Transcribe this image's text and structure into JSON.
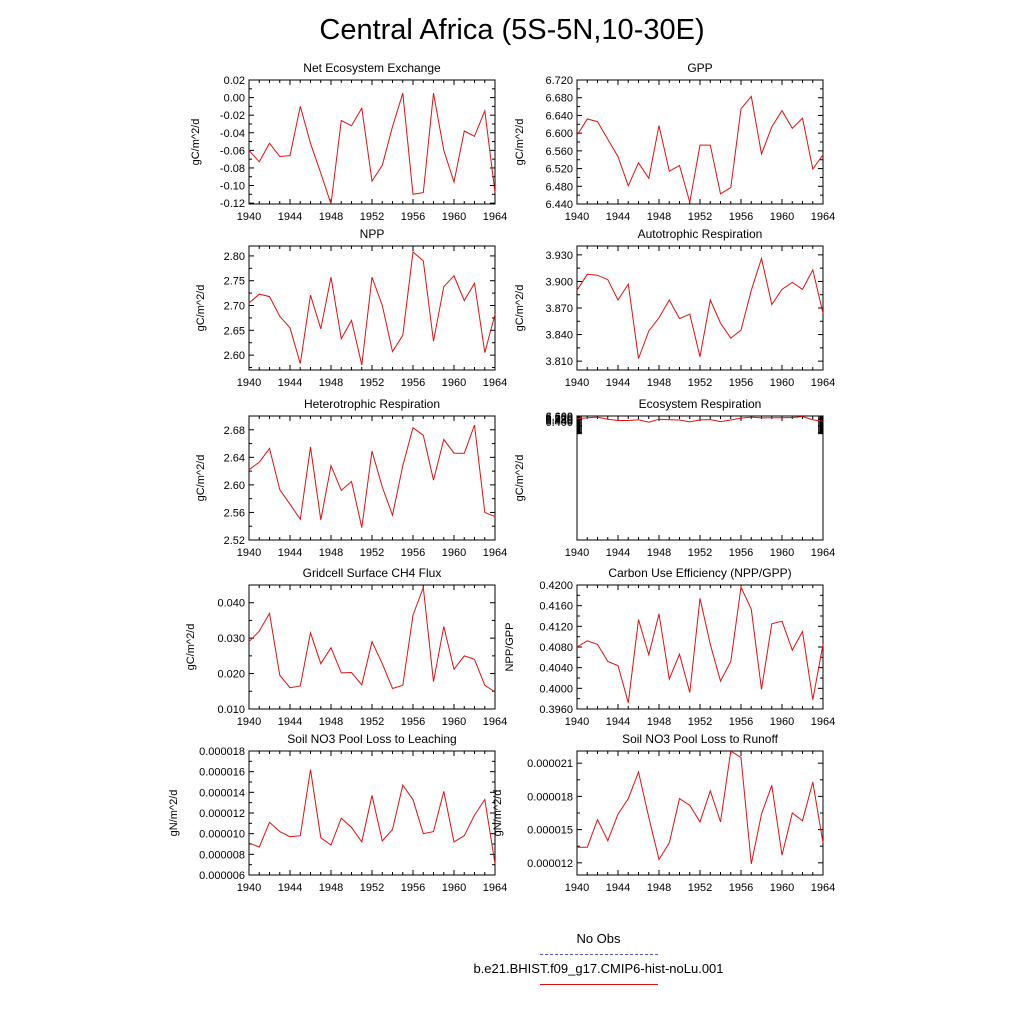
{
  "title": "Central Africa (5S-5N,10-30E)",
  "legend": [
    {
      "label": "No Obs",
      "color": "#5555cc",
      "dash": true
    },
    {
      "label": "b.e21.BHIST.f09_g17.CMIP6-hist-noLu.001",
      "color": "#e01010",
      "dash": false
    }
  ],
  "chart_data": [
    {
      "type": "line",
      "title": "Net Ecosystem Exchange",
      "ylabel": "gC/m^2/d",
      "xlim": [
        1940,
        1964
      ],
      "ylim": [
        -0.12,
        0.02
      ],
      "decimals": 2,
      "xticks": [
        1940,
        1944,
        1948,
        1952,
        1956,
        1960,
        1964
      ],
      "yticks": [
        -0.12,
        -0.1,
        -0.08,
        -0.06,
        -0.04,
        -0.02,
        0.0,
        0.02
      ],
      "x": [
        1940,
        1941,
        1942,
        1943,
        1944,
        1945,
        1946,
        1947,
        1948,
        1949,
        1950,
        1951,
        1952,
        1953,
        1954,
        1955,
        1956,
        1957,
        1958,
        1959,
        1960,
        1961,
        1962,
        1963,
        1964
      ],
      "series": [
        {
          "color": "#e01010",
          "values": [
            -0.06,
            -0.073,
            -0.052,
            -0.067,
            -0.066,
            -0.01,
            -0.052,
            -0.086,
            -0.121,
            -0.026,
            -0.032,
            -0.012,
            -0.095,
            -0.077,
            -0.033,
            0.005,
            -0.11,
            -0.108,
            0.005,
            -0.06,
            -0.096,
            -0.038,
            -0.044,
            -0.015,
            -0.108
          ]
        }
      ]
    },
    {
      "type": "line",
      "title": "GPP",
      "ylabel": "gC/m^2/d",
      "xlim": [
        1940,
        1964
      ],
      "ylim": [
        6.44,
        6.72
      ],
      "decimals": 3,
      "xticks": [
        1940,
        1944,
        1948,
        1952,
        1956,
        1960,
        1964
      ],
      "yticks": [
        6.44,
        6.48,
        6.52,
        6.56,
        6.6,
        6.64,
        6.68,
        6.72
      ],
      "x": [
        1940,
        1941,
        1942,
        1943,
        1944,
        1945,
        1946,
        1947,
        1948,
        1949,
        1950,
        1951,
        1952,
        1953,
        1954,
        1955,
        1956,
        1957,
        1958,
        1959,
        1960,
        1961,
        1962,
        1963,
        1964
      ],
      "series": [
        {
          "color": "#e01010",
          "values": [
            6.595,
            6.632,
            6.626,
            6.586,
            6.547,
            6.481,
            6.533,
            6.498,
            6.617,
            6.514,
            6.527,
            6.444,
            6.573,
            6.573,
            6.463,
            6.477,
            6.655,
            6.683,
            6.553,
            6.614,
            6.651,
            6.611,
            6.634,
            6.519,
            6.551
          ]
        }
      ]
    },
    {
      "type": "line",
      "title": "NPP",
      "ylabel": "gC/m^2/d",
      "xlim": [
        1940,
        1964
      ],
      "ylim": [
        2.57,
        2.82
      ],
      "decimals": 2,
      "xticks": [
        1940,
        1944,
        1948,
        1952,
        1956,
        1960,
        1964
      ],
      "yticks": [
        2.6,
        2.65,
        2.7,
        2.75,
        2.8
      ],
      "x": [
        1940,
        1941,
        1942,
        1943,
        1944,
        1945,
        1946,
        1947,
        1948,
        1949,
        1950,
        1951,
        1952,
        1953,
        1954,
        1955,
        1956,
        1957,
        1958,
        1959,
        1960,
        1961,
        1962,
        1963,
        1964
      ],
      "series": [
        {
          "color": "#e01010",
          "values": [
            2.705,
            2.723,
            2.718,
            2.678,
            2.655,
            2.583,
            2.721,
            2.653,
            2.757,
            2.633,
            2.67,
            2.58,
            2.757,
            2.7,
            2.607,
            2.64,
            2.808,
            2.79,
            2.628,
            2.738,
            2.76,
            2.71,
            2.745,
            2.605,
            2.682
          ]
        }
      ]
    },
    {
      "type": "line",
      "title": "Autotrophic Respiration",
      "ylabel": "gC/m^2/d",
      "xlim": [
        1940,
        1964
      ],
      "ylim": [
        3.8,
        3.94
      ],
      "decimals": 3,
      "xticks": [
        1940,
        1944,
        1948,
        1952,
        1956,
        1960,
        1964
      ],
      "yticks": [
        3.81,
        3.84,
        3.87,
        3.9,
        3.93
      ],
      "x": [
        1940,
        1941,
        1942,
        1943,
        1944,
        1945,
        1946,
        1947,
        1948,
        1949,
        1950,
        1951,
        1952,
        1953,
        1954,
        1955,
        1956,
        1957,
        1958,
        1959,
        1960,
        1961,
        1962,
        1963,
        1964
      ],
      "series": [
        {
          "color": "#e01010",
          "values": [
            3.89,
            3.908,
            3.907,
            3.902,
            3.879,
            3.897,
            3.813,
            3.844,
            3.859,
            3.879,
            3.858,
            3.863,
            3.815,
            3.879,
            3.853,
            3.836,
            3.845,
            3.89,
            3.926,
            3.874,
            3.891,
            3.899,
            3.891,
            3.913,
            3.864
          ]
        }
      ]
    },
    {
      "type": "line",
      "title": "Heterotrophic Respiration",
      "ylabel": "gC/m^2/d",
      "xlim": [
        1940,
        1964
      ],
      "ylim": [
        2.52,
        2.7
      ],
      "decimals": 2,
      "xticks": [
        1940,
        1944,
        1948,
        1952,
        1956,
        1960,
        1964
      ],
      "yticks": [
        2.52,
        2.56,
        2.6,
        2.64,
        2.68
      ],
      "x": [
        1940,
        1941,
        1942,
        1943,
        1944,
        1945,
        1946,
        1947,
        1948,
        1949,
        1950,
        1951,
        1952,
        1953,
        1954,
        1955,
        1956,
        1957,
        1958,
        1959,
        1960,
        1961,
        1962,
        1963,
        1964
      ],
      "series": [
        {
          "color": "#e01010",
          "values": [
            2.622,
            2.633,
            2.653,
            2.593,
            2.572,
            2.55,
            2.655,
            2.549,
            2.628,
            2.592,
            2.605,
            2.538,
            2.649,
            2.597,
            2.556,
            2.628,
            2.683,
            2.672,
            2.607,
            2.666,
            2.646,
            2.646,
            2.687,
            2.56,
            2.554
          ]
        }
      ]
    },
    {
      "type": "line",
      "title": "Ecosystem Respiration",
      "ylabel": "gC/m^2/d",
      "xlim": [
        1940,
        1964
      ],
      "ylim": [
        2.39,
        2.6
      ],
      "decimals": 3,
      "xticks": [
        1940,
        1944,
        1948,
        1952,
        1956,
        1960,
        1964
      ],
      "yticks": [
        6.4,
        6.44,
        6.48,
        6.52,
        6.56,
        6.6
      ],
      "x": [
        1940,
        1941,
        1942,
        1943,
        1944,
        1945,
        1946,
        1947,
        1948,
        1949,
        1950,
        1951,
        1952,
        1953,
        1954,
        1955,
        1956,
        1957,
        1958,
        1959,
        1960,
        1961,
        1962,
        1963,
        1964
      ],
      "series": [
        {
          "color": "#e01010",
          "values": [
            6.508,
            6.542,
            6.561,
            6.492,
            6.448,
            6.446,
            6.471,
            6.389,
            6.49,
            6.474,
            6.465,
            6.401,
            6.467,
            6.477,
            6.41,
            6.465,
            6.53,
            6.561,
            6.535,
            6.539,
            6.539,
            6.548,
            6.578,
            6.473,
            6.418
          ]
        }
      ]
    },
    {
      "type": "line",
      "title": "Gridcell Surface CH4 Flux",
      "ylabel": "gC/m^2/d",
      "xlim": [
        1940,
        1964
      ],
      "ylim": [
        0.01,
        0.045
      ],
      "decimals": 3,
      "xticks": [
        1940,
        1944,
        1948,
        1952,
        1956,
        1960,
        1964
      ],
      "yticks": [
        0.01,
        0.02,
        0.03,
        0.04
      ],
      "x": [
        1940,
        1941,
        1942,
        1943,
        1944,
        1945,
        1946,
        1947,
        1948,
        1949,
        1950,
        1951,
        1952,
        1953,
        1954,
        1955,
        1956,
        1957,
        1958,
        1959,
        1960,
        1961,
        1962,
        1963,
        1964
      ],
      "series": [
        {
          "color": "#e01010",
          "values": [
            0.029,
            0.032,
            0.037,
            0.0195,
            0.016,
            0.0165,
            0.0315,
            0.0228,
            0.0273,
            0.0202,
            0.0203,
            0.0168,
            0.029,
            0.0228,
            0.0158,
            0.0167,
            0.0365,
            0.0443,
            0.0177,
            0.0333,
            0.0212,
            0.025,
            0.024,
            0.0167,
            0.0148
          ]
        }
      ]
    },
    {
      "type": "line",
      "title": "Carbon Use Efficiency (NPP/GPP)",
      "ylabel": "NPP/GPP",
      "xlim": [
        1940,
        1964
      ],
      "ylim": [
        0.396,
        0.42
      ],
      "decimals": 4,
      "xticks": [
        1940,
        1944,
        1948,
        1952,
        1956,
        1960,
        1964
      ],
      "yticks": [
        0.396,
        0.4,
        0.404,
        0.408,
        0.412,
        0.416,
        0.42
      ],
      "x": [
        1940,
        1941,
        1942,
        1943,
        1944,
        1945,
        1946,
        1947,
        1948,
        1949,
        1950,
        1951,
        1952,
        1953,
        1954,
        1955,
        1956,
        1957,
        1958,
        1959,
        1960,
        1961,
        1962,
        1963,
        1964
      ],
      "series": [
        {
          "color": "#e01010",
          "values": [
            0.408,
            0.4092,
            0.4085,
            0.4052,
            0.4044,
            0.3972,
            0.4133,
            0.4065,
            0.4144,
            0.4018,
            0.4066,
            0.3992,
            0.4174,
            0.4085,
            0.4014,
            0.4052,
            0.4196,
            0.4153,
            0.3998,
            0.4125,
            0.413,
            0.4074,
            0.411,
            0.3978,
            0.4085
          ]
        }
      ]
    },
    {
      "type": "line",
      "title": "Soil NO3 Pool Loss to Leaching",
      "ylabel": "gN/m^2/d",
      "xlim": [
        1940,
        1964
      ],
      "ylim": [
        6e-06,
        1.8e-05
      ],
      "decimals": 6,
      "xticks": [
        1940,
        1944,
        1948,
        1952,
        1956,
        1960,
        1964
      ],
      "yticks": [
        6e-06,
        8e-06,
        1e-05,
        1.2e-05,
        1.4e-05,
        1.6e-05,
        1.8e-05
      ],
      "x": [
        1940,
        1941,
        1942,
        1943,
        1944,
        1945,
        1946,
        1947,
        1948,
        1949,
        1950,
        1951,
        1952,
        1953,
        1954,
        1955,
        1956,
        1957,
        1958,
        1959,
        1960,
        1961,
        1962,
        1963,
        1964
      ],
      "series": [
        {
          "color": "#e01010",
          "values": [
            9.1e-06,
            8.7e-06,
            1.11e-05,
            1.02e-05,
            9.7e-06,
            9.8e-06,
            1.62e-05,
            9.6e-06,
            8.9e-06,
            1.15e-05,
            1.06e-05,
            9.2e-06,
            1.37e-05,
            9.3e-06,
            1.04e-05,
            1.47e-05,
            1.33e-05,
            1e-05,
            1.02e-05,
            1.41e-05,
            9.2e-06,
            9.8e-06,
            1.18e-05,
            1.33e-05,
            7.1e-06
          ]
        }
      ]
    },
    {
      "type": "line",
      "title": "Soil NO3 Pool Loss to Runoff",
      "ylabel": "gN/m^2/d",
      "xlim": [
        1940,
        1964
      ],
      "ylim": [
        1.09e-05,
        2.21e-05
      ],
      "decimals": 6,
      "xticks": [
        1940,
        1944,
        1948,
        1952,
        1956,
        1960,
        1964
      ],
      "yticks": [
        1.2e-05,
        1.5e-05,
        1.8e-05,
        2.1e-05
      ],
      "x": [
        1940,
        1941,
        1942,
        1943,
        1944,
        1945,
        1946,
        1947,
        1948,
        1949,
        1950,
        1951,
        1952,
        1953,
        1954,
        1955,
        1956,
        1957,
        1958,
        1959,
        1960,
        1961,
        1962,
        1963,
        1964
      ],
      "series": [
        {
          "color": "#e01010",
          "values": [
            1.34e-05,
            1.34e-05,
            1.59e-05,
            1.4e-05,
            1.64e-05,
            1.78e-05,
            2.02e-05,
            1.61e-05,
            1.23e-05,
            1.38e-05,
            1.78e-05,
            1.72e-05,
            1.57e-05,
            1.85e-05,
            1.57e-05,
            2.21e-05,
            2.15e-05,
            1.19e-05,
            1.64e-05,
            1.9e-05,
            1.27e-05,
            1.65e-05,
            1.58e-05,
            1.93e-05,
            1.38e-05
          ]
        }
      ]
    }
  ]
}
